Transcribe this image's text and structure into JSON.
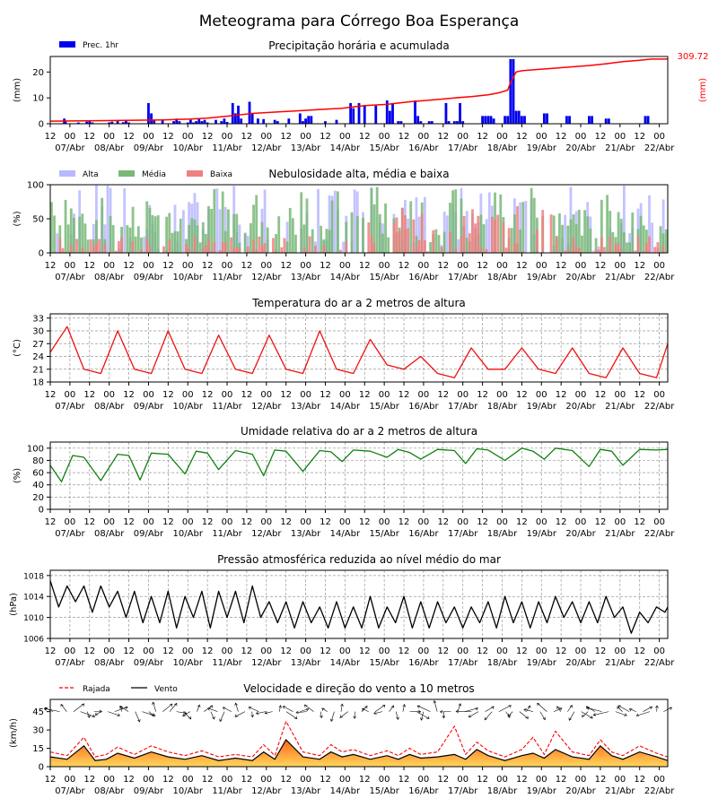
{
  "page": {
    "title": "Meteograma para Córrego Boa Esperança"
  },
  "time_axis": {
    "hour_ticks": [
      "12",
      "00",
      "12",
      "00",
      "12",
      "00",
      "12",
      "00",
      "12",
      "00",
      "12",
      "00",
      "12",
      "00",
      "12",
      "00",
      "12",
      "00",
      "12",
      "00",
      "12",
      "00",
      "12",
      "00",
      "12",
      "00",
      "12",
      "00",
      "12",
      "00",
      "12",
      "00"
    ],
    "day_labels": [
      "07/Abr",
      "08/Abr",
      "09/Abr",
      "10/Abr",
      "11/Abr",
      "12/Abr",
      "13/Abr",
      "14/Abr",
      "15/Abr",
      "16/Abr",
      "17/Abr",
      "18/Abr",
      "19/Abr",
      "20/Abr",
      "21/Abr",
      "22/Abr"
    ]
  },
  "chart_data": [
    {
      "id": "precip",
      "type": "bar",
      "title": "Precipitação horária e acumulada",
      "ylabel": "(mm)",
      "ylabel_right": "(mm)",
      "ylim": [
        0,
        26
      ],
      "yticks": [
        "0",
        "10",
        "20"
      ],
      "legend": [
        {
          "name": "Prec. 1hr",
          "color": "#0000ee"
        }
      ],
      "accum_label": "309.72",
      "accum_color": "#ff0000",
      "bar_color": "#0000ee",
      "bars": [
        [
          2.5,
          2
        ],
        [
          2.7,
          1
        ],
        [
          5,
          0.5
        ],
        [
          6.5,
          0.8
        ],
        [
          7,
          1
        ],
        [
          7.5,
          0.5
        ],
        [
          10.5,
          0.5
        ],
        [
          11,
          0.8
        ],
        [
          12,
          1
        ],
        [
          13,
          0.6
        ],
        [
          13.5,
          1.2
        ],
        [
          14,
          0.5
        ],
        [
          17.5,
          8
        ],
        [
          18,
          4
        ],
        [
          18.5,
          1.5
        ],
        [
          20,
          1.5
        ],
        [
          22,
          1
        ],
        [
          22.5,
          2
        ],
        [
          23,
          1
        ],
        [
          24.5,
          0.5
        ],
        [
          25,
          1.5
        ],
        [
          25.5,
          0.5
        ],
        [
          26,
          1
        ],
        [
          26.5,
          2
        ],
        [
          27,
          1
        ],
        [
          27.5,
          1.5
        ],
        [
          28,
          0.5
        ],
        [
          29.5,
          1.5
        ],
        [
          30.5,
          1
        ],
        [
          31,
          2
        ],
        [
          31.5,
          0.7
        ],
        [
          32.5,
          8
        ],
        [
          33,
          4
        ],
        [
          33.5,
          7
        ],
        [
          34,
          2
        ],
        [
          35.5,
          8.5
        ],
        [
          36,
          4
        ],
        [
          37,
          2
        ],
        [
          38,
          1.8
        ],
        [
          40,
          1.5
        ],
        [
          40.5,
          1
        ],
        [
          42.5,
          2
        ],
        [
          44.5,
          4
        ],
        [
          45,
          1
        ],
        [
          45.5,
          2
        ],
        [
          46,
          3
        ],
        [
          46.5,
          3
        ],
        [
          49,
          1
        ],
        [
          51,
          1.5
        ],
        [
          53.5,
          8
        ],
        [
          54,
          6
        ],
        [
          55,
          8
        ],
        [
          56,
          7
        ],
        [
          58,
          7
        ],
        [
          60,
          9
        ],
        [
          60.5,
          5
        ],
        [
          61,
          8
        ],
        [
          62,
          1
        ],
        [
          62.5,
          1
        ],
        [
          65,
          9
        ],
        [
          65.5,
          3
        ],
        [
          66,
          1
        ],
        [
          67.5,
          1
        ],
        [
          68,
          1
        ],
        [
          70.5,
          8
        ],
        [
          71,
          1
        ],
        [
          72,
          1
        ],
        [
          72.5,
          1
        ],
        [
          73,
          8
        ],
        [
          73.5,
          1
        ],
        [
          77,
          3
        ],
        [
          77.5,
          3
        ],
        [
          78,
          3
        ],
        [
          78.5,
          3
        ],
        [
          79,
          2
        ],
        [
          81,
          3
        ],
        [
          81.5,
          3
        ],
        [
          82,
          25
        ],
        [
          82.5,
          25
        ],
        [
          83,
          5
        ],
        [
          83.5,
          5
        ],
        [
          84,
          3
        ],
        [
          84.5,
          3
        ],
        [
          88,
          4
        ],
        [
          88.5,
          4
        ],
        [
          92,
          3
        ],
        [
          92.5,
          3
        ],
        [
          96,
          3
        ],
        [
          96.5,
          3
        ],
        [
          99,
          2
        ],
        [
          99.5,
          2
        ],
        [
          106,
          3
        ],
        [
          106.5,
          3
        ]
      ],
      "accum": [
        [
          0,
          1
        ],
        [
          10,
          1.2
        ],
        [
          20,
          1.5
        ],
        [
          25,
          1.8
        ],
        [
          28,
          2.2
        ],
        [
          32,
          3
        ],
        [
          36,
          4
        ],
        [
          40,
          4.5
        ],
        [
          44,
          5
        ],
        [
          48,
          5.5
        ],
        [
          52,
          6
        ],
        [
          56,
          7
        ],
        [
          60,
          7.5
        ],
        [
          64,
          8.5
        ],
        [
          68,
          9.2
        ],
        [
          72,
          10
        ],
        [
          75,
          10.5
        ],
        [
          78,
          11.2
        ],
        [
          80,
          12
        ],
        [
          81.5,
          13
        ],
        [
          82,
          16
        ],
        [
          82.5,
          18
        ],
        [
          83,
          20
        ],
        [
          84,
          20.5
        ],
        [
          87,
          21
        ],
        [
          90,
          21.5
        ],
        [
          93,
          22
        ],
        [
          96,
          22.5
        ],
        [
          99,
          23.2
        ],
        [
          102,
          24
        ],
        [
          105,
          24.5
        ],
        [
          107,
          25
        ],
        [
          110,
          25
        ]
      ]
    },
    {
      "id": "clouds",
      "type": "bar",
      "title": "Nebulosidade alta, média e baixa",
      "ylabel": "(%)",
      "ylim": [
        0,
        100
      ],
      "yticks": [
        "0",
        "50",
        "100"
      ],
      "series": [
        {
          "name": "Alta",
          "color": "#b8b8ff"
        },
        {
          "name": "Média",
          "color": "#78b878"
        },
        {
          "name": "Baixa",
          "color": "#f08080"
        }
      ]
    },
    {
      "id": "temp",
      "type": "line",
      "title": "Temperatura do ar a 2 metros de altura",
      "ylabel": "(°C)",
      "ylim": [
        18,
        34
      ],
      "yticks": [
        "18",
        "21",
        "24",
        "27",
        "30",
        "33"
      ],
      "line_color": "#ee1111",
      "series": [
        {
          "x": [
            0,
            3,
            6,
            9,
            12,
            15,
            18,
            21,
            24,
            27,
            30,
            33,
            36,
            39,
            42,
            45,
            48,
            51,
            54,
            57,
            60,
            63,
            66,
            69,
            72,
            75,
            78,
            81,
            84,
            87,
            90,
            93,
            96,
            99,
            102,
            105,
            108,
            110
          ],
          "y": [
            25,
            31,
            21,
            20,
            30,
            21,
            20,
            30,
            21,
            20,
            29,
            21,
            20,
            29,
            21,
            20,
            30,
            21,
            20,
            28,
            22,
            21,
            24,
            20,
            19,
            26,
            21,
            21,
            26,
            21,
            20,
            26,
            20,
            19,
            26,
            20,
            19,
            27
          ]
        }
      ]
    },
    {
      "id": "humidity",
      "type": "line",
      "title": "Umidade relativa do ar a 2 metros de altura",
      "ylabel": "(%)",
      "ylim": [
        0,
        110
      ],
      "yticks": [
        "0",
        "20",
        "40",
        "60",
        "80",
        "100"
      ],
      "line_color": "#108010",
      "series": [
        {
          "x": [
            0,
            2,
            4,
            6,
            9,
            12,
            14,
            16,
            18,
            21,
            24,
            26,
            28,
            30,
            33,
            36,
            38,
            40,
            42,
            45,
            48,
            50,
            52,
            54,
            57,
            60,
            62,
            64,
            66,
            69,
            72,
            74,
            76,
            78,
            81,
            84,
            86,
            88,
            90,
            93,
            96,
            98,
            100,
            102,
            105,
            108,
            110
          ],
          "y": [
            72,
            45,
            88,
            85,
            47,
            90,
            88,
            48,
            92,
            90,
            58,
            95,
            92,
            65,
            96,
            90,
            55,
            97,
            95,
            62,
            96,
            94,
            78,
            97,
            95,
            85,
            98,
            93,
            82,
            98,
            96,
            75,
            99,
            97,
            80,
            100,
            95,
            82,
            100,
            96,
            70,
            98,
            95,
            72,
            98,
            97,
            98
          ]
        }
      ]
    },
    {
      "id": "pressure",
      "type": "line",
      "title": "Pressão atmosférica reduzida ao nível médio do mar",
      "ylabel": "(hPa)",
      "ylim": [
        1006,
        1019
      ],
      "yticks": [
        "1006",
        "1010",
        "1014",
        "1018"
      ],
      "line_color": "#000000",
      "series": [
        {
          "x": [
            0,
            1.5,
            3,
            4.5,
            6,
            7.5,
            9,
            10.5,
            12,
            13.5,
            15,
            16.5,
            18,
            19.5,
            21,
            22.5,
            24,
            25.5,
            27,
            28.5,
            30,
            31.5,
            33,
            34.5,
            36,
            37.5,
            39,
            40.5,
            42,
            43.5,
            45,
            46.5,
            48,
            49.5,
            51,
            52.5,
            54,
            55.5,
            57,
            58.5,
            60,
            61.5,
            63,
            64.5,
            66,
            67.5,
            69,
            70.5,
            72,
            73.5,
            75,
            76.5,
            78,
            79.5,
            81,
            82.5,
            84,
            85.5,
            87,
            88.5,
            90,
            91.5,
            93,
            94.5,
            96,
            97.5,
            99,
            100.5,
            102,
            103.5,
            105,
            106.5,
            108,
            109.5,
            110
          ],
          "y": [
            1017,
            1012,
            1016,
            1013,
            1016,
            1011,
            1016,
            1012,
            1015,
            1010,
            1015,
            1009,
            1014,
            1009,
            1015,
            1008,
            1014,
            1010,
            1015,
            1008,
            1015,
            1010,
            1015,
            1009,
            1016,
            1010,
            1013,
            1009,
            1013,
            1008,
            1013,
            1009,
            1012,
            1008,
            1013,
            1008,
            1012,
            1008,
            1014,
            1008,
            1012,
            1009,
            1014,
            1008,
            1013,
            1008,
            1013,
            1009,
            1012,
            1008,
            1012,
            1009,
            1013,
            1008,
            1014,
            1009,
            1013,
            1008,
            1013,
            1009,
            1014,
            1010,
            1013,
            1009,
            1013,
            1009,
            1014,
            1010,
            1012,
            1007,
            1011,
            1009,
            1012,
            1011,
            1012
          ]
        }
      ]
    },
    {
      "id": "wind",
      "type": "area",
      "title": "Velocidade e direção do vento a 10 metros",
      "ylabel": "(km/h)",
      "ylim": [
        0,
        55
      ],
      "yticks": [
        "0",
        "15",
        "30",
        "45"
      ],
      "series": [
        {
          "name": "Vento",
          "color": "#000000",
          "x": [
            0,
            3,
            6,
            8,
            10,
            12,
            15,
            18,
            21,
            24,
            27,
            30,
            33,
            36,
            38,
            40,
            42,
            45,
            48,
            50,
            52,
            54,
            57,
            60,
            62,
            64,
            66,
            69,
            72,
            74,
            76,
            78,
            81,
            84,
            86,
            88,
            90,
            93,
            96,
            98,
            100,
            102,
            105,
            108,
            110
          ],
          "y": [
            8,
            6,
            17,
            5,
            6,
            11,
            7,
            12,
            8,
            6,
            9,
            5,
            7,
            5,
            12,
            6,
            22,
            8,
            6,
            12,
            8,
            10,
            6,
            9,
            6,
            10,
            7,
            8,
            10,
            6,
            14,
            9,
            5,
            9,
            11,
            7,
            14,
            8,
            6,
            17,
            9,
            6,
            12,
            8,
            5
          ]
        },
        {
          "name": "Rajada",
          "color": "#ff0000",
          "x": [
            0,
            3,
            6,
            8,
            10,
            12,
            15,
            18,
            21,
            24,
            27,
            30,
            33,
            36,
            38,
            40,
            42,
            45,
            48,
            50,
            52,
            54,
            57,
            60,
            62,
            64,
            66,
            69,
            72,
            74,
            76,
            78,
            81,
            84,
            86,
            88,
            90,
            93,
            96,
            98,
            100,
            102,
            105,
            108,
            110
          ],
          "y": [
            12,
            9,
            24,
            8,
            10,
            16,
            10,
            17,
            12,
            9,
            13,
            8,
            10,
            8,
            18,
            9,
            37,
            12,
            9,
            18,
            12,
            14,
            9,
            13,
            9,
            15,
            10,
            12,
            33,
            10,
            20,
            13,
            8,
            14,
            24,
            10,
            29,
            12,
            9,
            22,
            12,
            9,
            17,
            11,
            8
          ]
        }
      ]
    }
  ]
}
